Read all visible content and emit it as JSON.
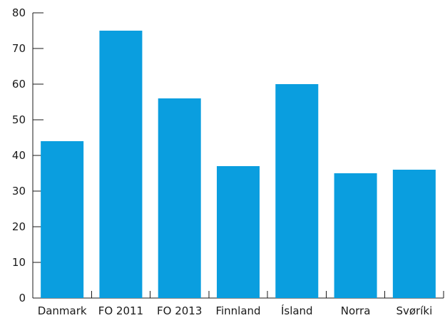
{
  "chart_data": {
    "type": "bar",
    "categories": [
      "Danmark",
      "FO 2011",
      "FO 2013",
      "Finnland",
      "Ísland",
      "Norra",
      "Svøríki"
    ],
    "values": [
      44,
      75,
      56,
      37,
      60,
      35,
      36
    ],
    "title": "",
    "xlabel": "",
    "ylabel": "",
    "ylim": [
      0,
      80
    ],
    "yticks": [
      0,
      10,
      20,
      30,
      40,
      50,
      60,
      70,
      80
    ],
    "grid": false,
    "legend": "none",
    "bar_color": "#0a9edf",
    "axis_color": "#1a1a1a"
  }
}
